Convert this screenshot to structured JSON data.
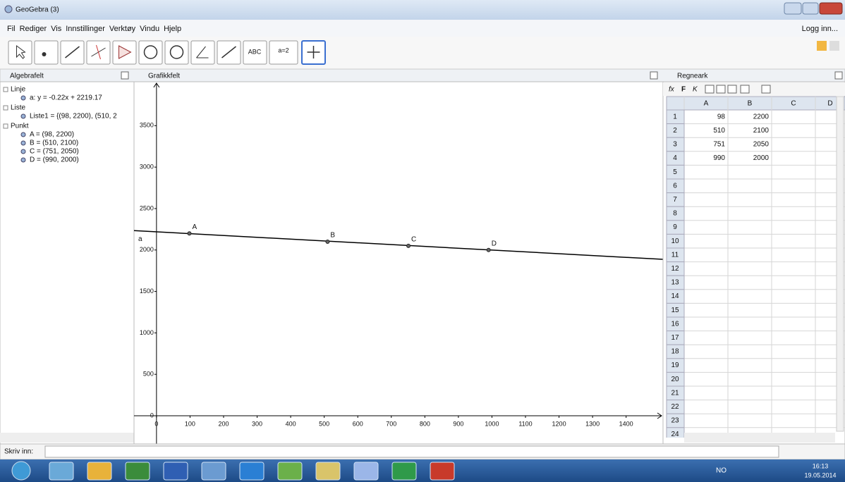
{
  "window": {
    "title": "GeoGebra (3)"
  },
  "menu": {
    "items": [
      "Fil",
      "Rediger",
      "Vis",
      "Innstillinger",
      "Verktøy",
      "Vindu",
      "Hjelp"
    ],
    "login": "Logg inn..."
  },
  "toolbar": {
    "text_tools": [
      "ABC",
      "a=2"
    ]
  },
  "algebra": {
    "title": "Algebrafelt",
    "groups": [
      {
        "name": "Linje",
        "items": [
          "a: y = -0.22x + 2219.17"
        ]
      },
      {
        "name": "Liste",
        "items": [
          "Liste1 = {(98, 2200), (510, 2"
        ]
      },
      {
        "name": "Punkt",
        "items": [
          "A = (98, 2200)",
          "B = (510, 2100)",
          "C = (751, 2050)",
          "D = (990, 2000)"
        ]
      }
    ]
  },
  "graphics": {
    "title": "Grafikkfelt",
    "xlim": [
      -67,
      1510
    ],
    "ylim": [
      -340,
      4030
    ],
    "xticks": [
      0,
      100,
      200,
      300,
      400,
      500,
      600,
      700,
      800,
      900,
      1000,
      1100,
      1200,
      1300,
      1400
    ],
    "yticks": [
      0,
      500,
      1000,
      1500,
      2000,
      2500,
      3000,
      3500
    ],
    "line": {
      "name": "a",
      "slope": -0.22,
      "intercept": 2219.17
    },
    "points": [
      {
        "name": "A",
        "x": 98,
        "y": 2200
      },
      {
        "name": "B",
        "x": 510,
        "y": 2100
      },
      {
        "name": "C",
        "x": 751,
        "y": 2050
      },
      {
        "name": "D",
        "x": 990,
        "y": 2000
      }
    ]
  },
  "spreadsheet": {
    "title": "Regneark",
    "toolbar": [
      "fx",
      "F",
      "K"
    ],
    "columns": [
      "A",
      "B",
      "C",
      "D"
    ],
    "row_numbers": [
      1,
      2,
      3,
      4,
      5,
      6,
      7,
      8,
      9,
      10,
      11,
      12,
      13,
      14,
      15,
      16,
      17,
      18,
      19,
      20,
      21,
      22,
      23,
      24
    ],
    "cells": [
      [
        98,
        2200
      ],
      [
        510,
        2100
      ],
      [
        751,
        2050
      ],
      [
        990,
        2000
      ]
    ]
  },
  "input_bar": {
    "label": "Skriv inn:"
  },
  "taskbar": {
    "language": "NO",
    "time": "16:13",
    "date": "19.05.2014"
  }
}
